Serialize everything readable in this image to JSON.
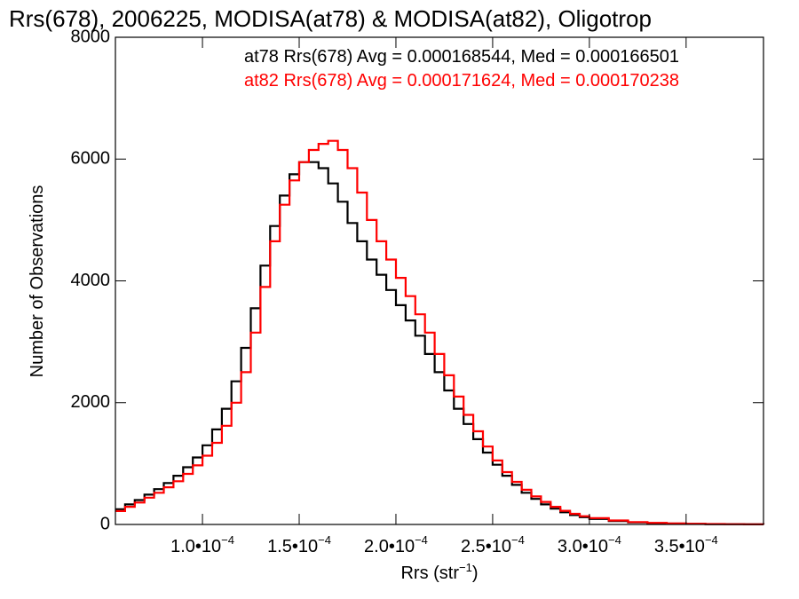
{
  "chart_data": {
    "type": "line",
    "title": "Rrs(678), 2006225, MODISA(at78) & MODISA(at82), Oligotrop",
    "xlabel": "Rrs (str",
    "xlabel_sup": "−1",
    "xlabel_close": ")",
    "ylabel": "Number of Observations",
    "xlim": [
      5.5e-05,
      0.00039
    ],
    "ylim": [
      0,
      8000
    ],
    "grid": false,
    "legend_placement": "top-right",
    "x_ticks": [
      {
        "mant": "1.0•10",
        "exp": "−4",
        "value": 0.0001
      },
      {
        "mant": "1.5•10",
        "exp": "−4",
        "value": 0.00015
      },
      {
        "mant": "2.0•10",
        "exp": "−4",
        "value": 0.0002
      },
      {
        "mant": "2.5•10",
        "exp": "−4",
        "value": 0.00025
      },
      {
        "mant": "3.0•10",
        "exp": "−4",
        "value": 0.0003
      },
      {
        "mant": "3.5•10",
        "exp": "−4",
        "value": 0.00035
      }
    ],
    "y_ticks": [
      {
        "label": "0",
        "value": 0
      },
      {
        "label": "2000",
        "value": 2000
      },
      {
        "label": "4000",
        "value": 4000
      },
      {
        "label": "6000",
        "value": 6000
      },
      {
        "label": "8000",
        "value": 8000
      }
    ],
    "series": [
      {
        "name": "at78",
        "legend": "at78 Rrs(678) Avg = 0.000168544, Med = 0.000166501",
        "color": "#000000",
        "x": [
          5.5e-05,
          6e-05,
          6.5e-05,
          7e-05,
          7.5e-05,
          8e-05,
          8.5e-05,
          9e-05,
          9.5e-05,
          0.0001,
          0.000105,
          0.00011,
          0.000115,
          0.00012,
          0.000125,
          0.00013,
          0.000135,
          0.00014,
          0.000145,
          0.00015,
          0.000155,
          0.00016,
          0.000165,
          0.00017,
          0.000175,
          0.00018,
          0.000185,
          0.00019,
          0.000195,
          0.0002,
          0.000205,
          0.00021,
          0.000215,
          0.00022,
          0.000225,
          0.00023,
          0.000235,
          0.00024,
          0.000245,
          0.00025,
          0.000255,
          0.00026,
          0.000265,
          0.00027,
          0.000275,
          0.00028,
          0.000285,
          0.00029,
          0.000295,
          0.0003,
          0.00031,
          0.00032,
          0.00033,
          0.00034,
          0.00035,
          0.00036,
          0.00037,
          0.00038,
          0.00039
        ],
        "y": [
          250,
          330,
          400,
          490,
          580,
          680,
          800,
          940,
          1100,
          1300,
          1560,
          1900,
          2350,
          2900,
          3550,
          4250,
          4900,
          5400,
          5750,
          5950,
          5950,
          5850,
          5600,
          5300,
          4950,
          4650,
          4350,
          4100,
          3850,
          3600,
          3350,
          3100,
          2800,
          2500,
          2200,
          1900,
          1650,
          1400,
          1180,
          980,
          800,
          650,
          520,
          420,
          330,
          260,
          200,
          155,
          120,
          90,
          55,
          35,
          22,
          15,
          10,
          6,
          4,
          3,
          2
        ]
      },
      {
        "name": "at82",
        "legend": "at82 Rrs(678) Avg = 0.000171624, Med = 0.000170238",
        "color": "#ff0000",
        "x": [
          5.5e-05,
          6e-05,
          6.5e-05,
          7e-05,
          7.5e-05,
          8e-05,
          8.5e-05,
          9e-05,
          9.5e-05,
          0.0001,
          0.000105,
          0.00011,
          0.000115,
          0.00012,
          0.000125,
          0.00013,
          0.000135,
          0.00014,
          0.000145,
          0.00015,
          0.000155,
          0.00016,
          0.000165,
          0.00017,
          0.000175,
          0.00018,
          0.000185,
          0.00019,
          0.000195,
          0.0002,
          0.000205,
          0.00021,
          0.000215,
          0.00022,
          0.000225,
          0.00023,
          0.000235,
          0.00024,
          0.000245,
          0.00025,
          0.000255,
          0.00026,
          0.000265,
          0.00027,
          0.000275,
          0.00028,
          0.000285,
          0.00029,
          0.000295,
          0.0003,
          0.00031,
          0.00032,
          0.00033,
          0.00034,
          0.00035,
          0.00036,
          0.00037,
          0.00038,
          0.00039
        ],
        "y": [
          220,
          290,
          360,
          440,
          520,
          610,
          710,
          830,
          970,
          1130,
          1340,
          1620,
          2000,
          2500,
          3150,
          3900,
          4650,
          5250,
          5650,
          5950,
          6150,
          6250,
          6300,
          6150,
          5850,
          5450,
          5000,
          4650,
          4350,
          4050,
          3750,
          3450,
          3150,
          2800,
          2450,
          2100,
          1800,
          1530,
          1280,
          1050,
          860,
          700,
          570,
          460,
          370,
          290,
          225,
          175,
          135,
          105,
          65,
          40,
          26,
          17,
          11,
          7,
          5,
          3,
          2
        ]
      }
    ]
  }
}
